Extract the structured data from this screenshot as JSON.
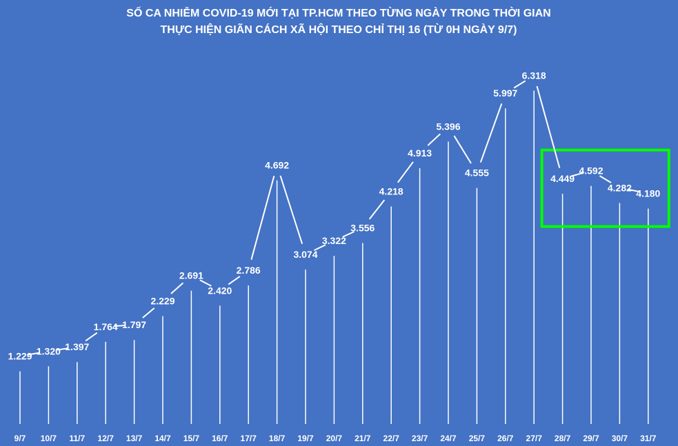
{
  "chart_data": {
    "type": "line",
    "title": "SỐ CA NHIỄM COVID-19 MỚI TẠI TP.HCM THEO TỪNG NGÀY TRONG THỜI GIAN",
    "subtitle": "THỰC HIỆN GIÃN CÁCH XÃ HỘI THEO CHỈ THỊ 16 (TỪ 0H NGÀY 9/7)",
    "categories": [
      "9/7",
      "10/7",
      "11/7",
      "12/7",
      "13/7",
      "14/7",
      "15/7",
      "16/7",
      "17/7",
      "18/7",
      "19/7",
      "20/7",
      "21/7",
      "22/7",
      "23/7",
      "24/7",
      "25/7",
      "26/7",
      "27/7",
      "28/7",
      "29/7",
      "30/7",
      "31/7"
    ],
    "values": [
      1229,
      1320,
      1397,
      1764,
      1797,
      2229,
      2691,
      2420,
      2786,
      4692,
      3074,
      3322,
      3556,
      4218,
      4913,
      5396,
      4555,
      5997,
      6318,
      4449,
      4592,
      4282,
      4180
    ],
    "labels": [
      "1.229",
      "1.320",
      "1.397",
      "1.764",
      "1.797",
      "2.229",
      "2.691",
      "2.420",
      "2.786",
      "4.692",
      "3.074",
      "3.322",
      "3.556",
      "4.218",
      "4.913",
      "5.396",
      "4.555",
      "5.997",
      "6.318",
      "4.449",
      "4.592",
      "4.282",
      "4.180"
    ],
    "ylim": [
      0,
      6500
    ],
    "grid": false,
    "drop_lines": true,
    "highlight": {
      "from": "28/7",
      "to": "31/7",
      "color": "#00ff00"
    },
    "colors": {
      "background": "#4472c4",
      "line": "#ffffff",
      "text": "#ffffff"
    }
  }
}
